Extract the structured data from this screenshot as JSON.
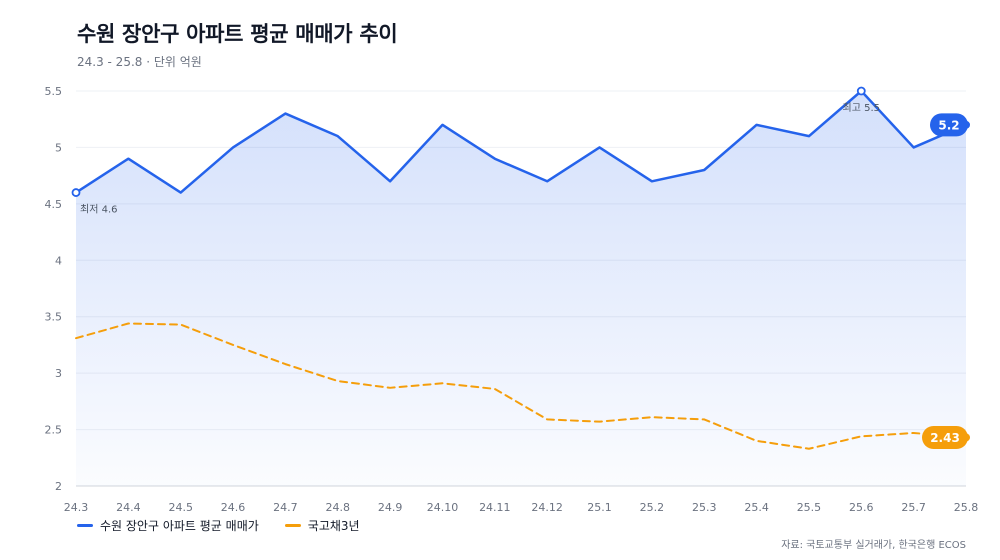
{
  "title": "수원 장안구 아파트 평균 매매가 추이",
  "subtitle": "24.3 - 25.8 · 단위 억원",
  "source": "자료: 국토교통부 실거래가, 한국은행 ECOS",
  "chart_data": {
    "type": "line",
    "title": "수원 장안구 아파트 평균 매매가 추이",
    "subtitle": "24.3 - 25.8 · 단위 억원",
    "categories": [
      "24.3",
      "24.4",
      "24.5",
      "24.6",
      "24.7",
      "24.8",
      "24.9",
      "24.10",
      "24.11",
      "24.12",
      "25.1",
      "25.2",
      "25.3",
      "25.4",
      "25.5",
      "25.6",
      "25.7",
      "25.8"
    ],
    "ylim": [
      2,
      5.5
    ],
    "yticks": [
      "2",
      "2.5",
      "3",
      "3.5",
      "4",
      "4.5",
      "5",
      "5.5"
    ],
    "ytick_values": [
      2,
      2.5,
      3,
      3.5,
      4,
      4.5,
      5,
      5.5
    ],
    "grid": true,
    "legend_position": "bottom-left",
    "series": [
      {
        "name": "수원 장안구 아파트 평균 매매가",
        "color": "#2563eb",
        "style": "solid",
        "values": [
          4.6,
          4.9,
          4.6,
          5.0,
          5.3,
          5.1,
          4.7,
          5.2,
          4.9,
          4.7,
          5.0,
          4.7,
          4.8,
          5.2,
          5.1,
          5.5,
          5.0,
          5.2
        ],
        "end_label": "5.2"
      },
      {
        "name": "국고채3년",
        "color": "#f59e0b",
        "style": "dashed",
        "values": [
          3.31,
          3.44,
          3.43,
          3.25,
          3.08,
          2.93,
          2.87,
          2.91,
          2.86,
          2.59,
          2.57,
          2.61,
          2.59,
          2.4,
          2.33,
          2.44,
          2.47,
          2.43
        ],
        "end_label": "2.43"
      }
    ],
    "annotations": [
      {
        "text": "최저 4.6",
        "series": 0,
        "index": 0,
        "placement": "below"
      },
      {
        "text": "최고 5.5",
        "series": 0,
        "index": 15,
        "placement": "below"
      }
    ]
  }
}
